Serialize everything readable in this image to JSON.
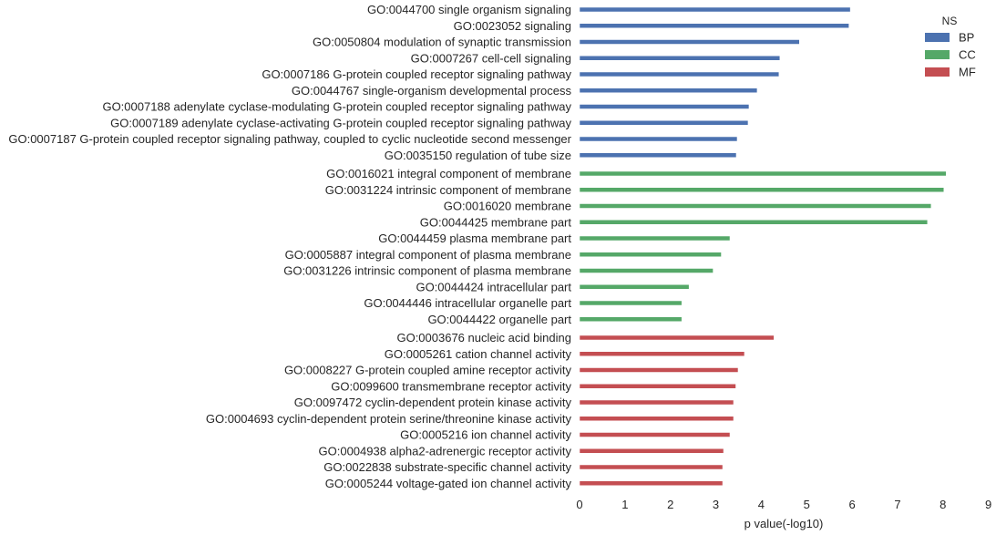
{
  "chart_data": {
    "type": "bar",
    "orientation": "horizontal",
    "xlabel": "p value(-log10)",
    "xlim": [
      0,
      9
    ],
    "xticks": [
      0,
      1,
      2,
      3,
      4,
      5,
      6,
      7,
      8,
      9
    ],
    "grid": false,
    "legend": {
      "title": "NS",
      "placement": "top-right",
      "entries": [
        {
          "label": "BP",
          "color": "#4c72b0"
        },
        {
          "label": "CC",
          "color": "#55a868"
        },
        {
          "label": "MF",
          "color": "#c44e52"
        }
      ]
    },
    "bars": [
      {
        "label": "GO:0044700 single organism signaling",
        "value": 5.96,
        "ns": "BP"
      },
      {
        "label": "GO:0023052 signaling",
        "value": 5.93,
        "ns": "BP"
      },
      {
        "label": "GO:0050804 modulation of synaptic transmission",
        "value": 4.84,
        "ns": "BP"
      },
      {
        "label": "GO:0007267 cell-cell signaling",
        "value": 4.41,
        "ns": "BP"
      },
      {
        "label": "GO:0007186 G-protein coupled receptor signaling pathway",
        "value": 4.39,
        "ns": "BP"
      },
      {
        "label": "GO:0044767 single-organism developmental process",
        "value": 3.91,
        "ns": "BP"
      },
      {
        "label": "GO:0007188 adenylate cyclase-modulating G-protein coupled receptor signaling pathway",
        "value": 3.73,
        "ns": "BP"
      },
      {
        "label": "GO:0007189 adenylate cyclase-activating G-protein coupled receptor signaling pathway",
        "value": 3.71,
        "ns": "BP"
      },
      {
        "label": "GO:0007187 G-protein coupled receptor signaling pathway, coupled to cyclic nucleotide second messenger",
        "value": 3.47,
        "ns": "BP"
      },
      {
        "label": "GO:0035150 regulation of tube size",
        "value": 3.45,
        "ns": "BP"
      },
      {
        "label": "GO:0016021 integral component of membrane",
        "value": 8.07,
        "ns": "CC"
      },
      {
        "label": "GO:0031224 intrinsic component of membrane",
        "value": 8.02,
        "ns": "CC"
      },
      {
        "label": "GO:0016020 membrane",
        "value": 7.74,
        "ns": "CC"
      },
      {
        "label": "GO:0044425 membrane part",
        "value": 7.66,
        "ns": "CC"
      },
      {
        "label": "GO:0044459 plasma membrane part",
        "value": 3.31,
        "ns": "CC"
      },
      {
        "label": "GO:0005887 integral component of plasma membrane",
        "value": 3.12,
        "ns": "CC"
      },
      {
        "label": "GO:0031226 intrinsic component of plasma membrane",
        "value": 2.94,
        "ns": "CC"
      },
      {
        "label": "GO:0044424 intracellular part",
        "value": 2.41,
        "ns": "CC"
      },
      {
        "label": "GO:0044446 intracellular organelle part",
        "value": 2.25,
        "ns": "CC"
      },
      {
        "label": "GO:0044422 organelle part",
        "value": 2.25,
        "ns": "CC"
      },
      {
        "label": "GO:0003676 nucleic acid binding",
        "value": 4.28,
        "ns": "MF"
      },
      {
        "label": "GO:0005261 cation channel activity",
        "value": 3.63,
        "ns": "MF"
      },
      {
        "label": "GO:0008227 G-protein coupled amine receptor activity",
        "value": 3.49,
        "ns": "MF"
      },
      {
        "label": "GO:0099600 transmembrane receptor activity",
        "value": 3.44,
        "ns": "MF"
      },
      {
        "label": "GO:0097472 cyclin-dependent protein kinase activity",
        "value": 3.39,
        "ns": "MF"
      },
      {
        "label": "GO:0004693 cyclin-dependent protein serine/threonine kinase activity",
        "value": 3.39,
        "ns": "MF"
      },
      {
        "label": "GO:0005216 ion channel activity",
        "value": 3.31,
        "ns": "MF"
      },
      {
        "label": "GO:0004938 alpha2-adrenergic receptor activity",
        "value": 3.17,
        "ns": "MF"
      },
      {
        "label": "GO:0022838 substrate-specific channel activity",
        "value": 3.15,
        "ns": "MF"
      },
      {
        "label": "GO:0005244 voltage-gated ion channel activity",
        "value": 3.15,
        "ns": "MF"
      }
    ]
  }
}
